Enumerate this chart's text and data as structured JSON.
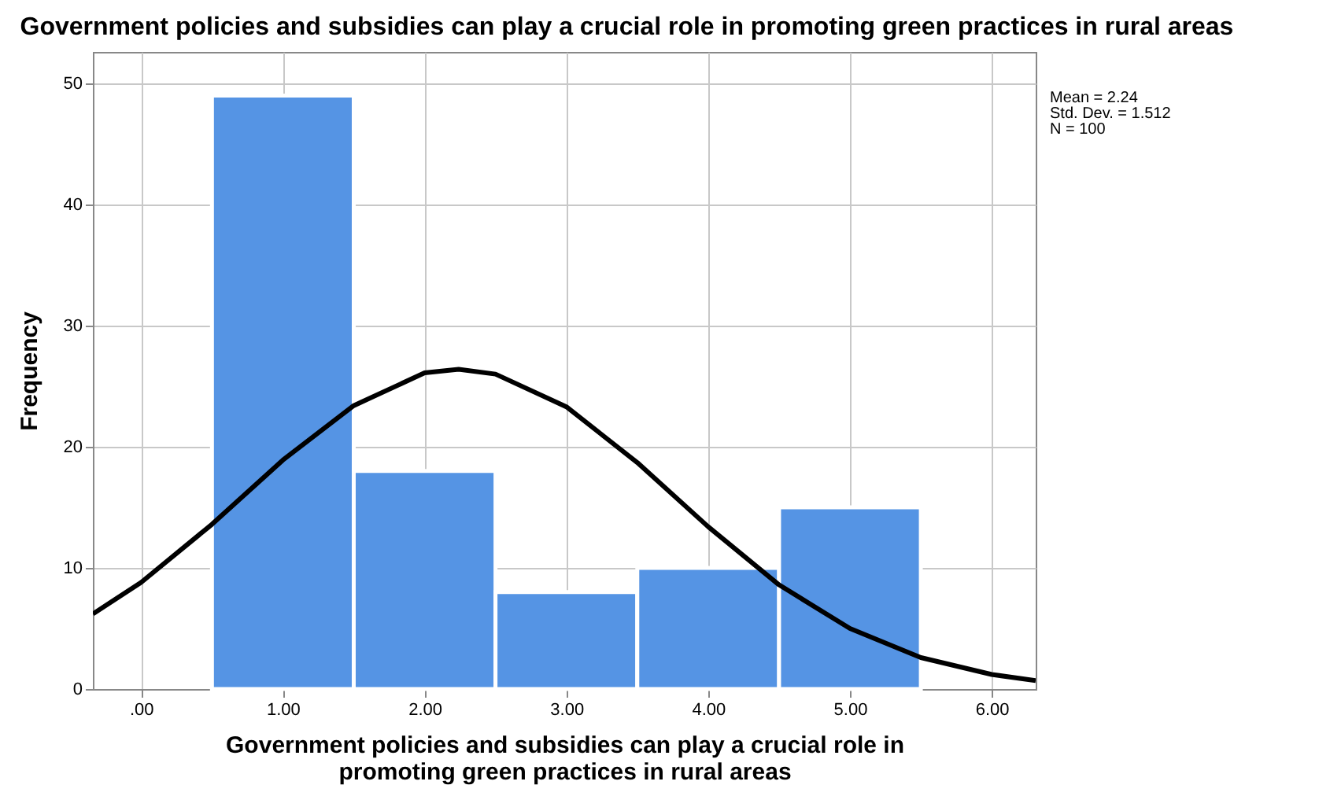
{
  "chart_data": {
    "type": "histogram",
    "title": "Government policies and subsidies can play a crucial role in promoting green practices in rural areas",
    "xlabel": "Government policies and subsidies can play a crucial role in promoting green practices in rural areas",
    "ylabel": "Frequency",
    "bins": [
      0.5,
      1.5,
      2.5,
      3.5,
      4.5,
      5.5
    ],
    "values": [
      49,
      18,
      8,
      10,
      15
    ],
    "color": "#5594e4",
    "series": [
      {
        "type": "line",
        "color": "#000000",
        "x": [
          -0.34,
          0,
          0.5,
          1,
          1.5,
          2,
          2.24,
          2.5,
          3,
          3.5,
          4,
          4.5,
          5,
          5.5,
          6,
          6.31
        ],
        "values": [
          6.2,
          8.8,
          13.6,
          18.9,
          23.4,
          26.1,
          26.4,
          26.0,
          23.3,
          18.7,
          13.4,
          8.6,
          5.0,
          2.6,
          1.2,
          0.7
        ]
      }
    ],
    "xlim": [
      -0.34,
      6.31
    ],
    "xticks": [
      {
        "value": 0,
        "label": ".00"
      },
      {
        "value": 1,
        "label": "1.00"
      },
      {
        "value": 2,
        "label": "2.00"
      },
      {
        "value": 3,
        "label": "3.00"
      },
      {
        "value": 4,
        "label": "4.00"
      },
      {
        "value": 5,
        "label": "5.00"
      },
      {
        "value": 6,
        "label": "6.00"
      }
    ],
    "ylim": [
      0,
      52.6
    ],
    "yticks": [
      0,
      10,
      20,
      30,
      40,
      50
    ],
    "grid": true,
    "annotations": [
      "Mean = 2.24",
      "Std. Dev. = 1.512",
      "N = 100"
    ]
  }
}
